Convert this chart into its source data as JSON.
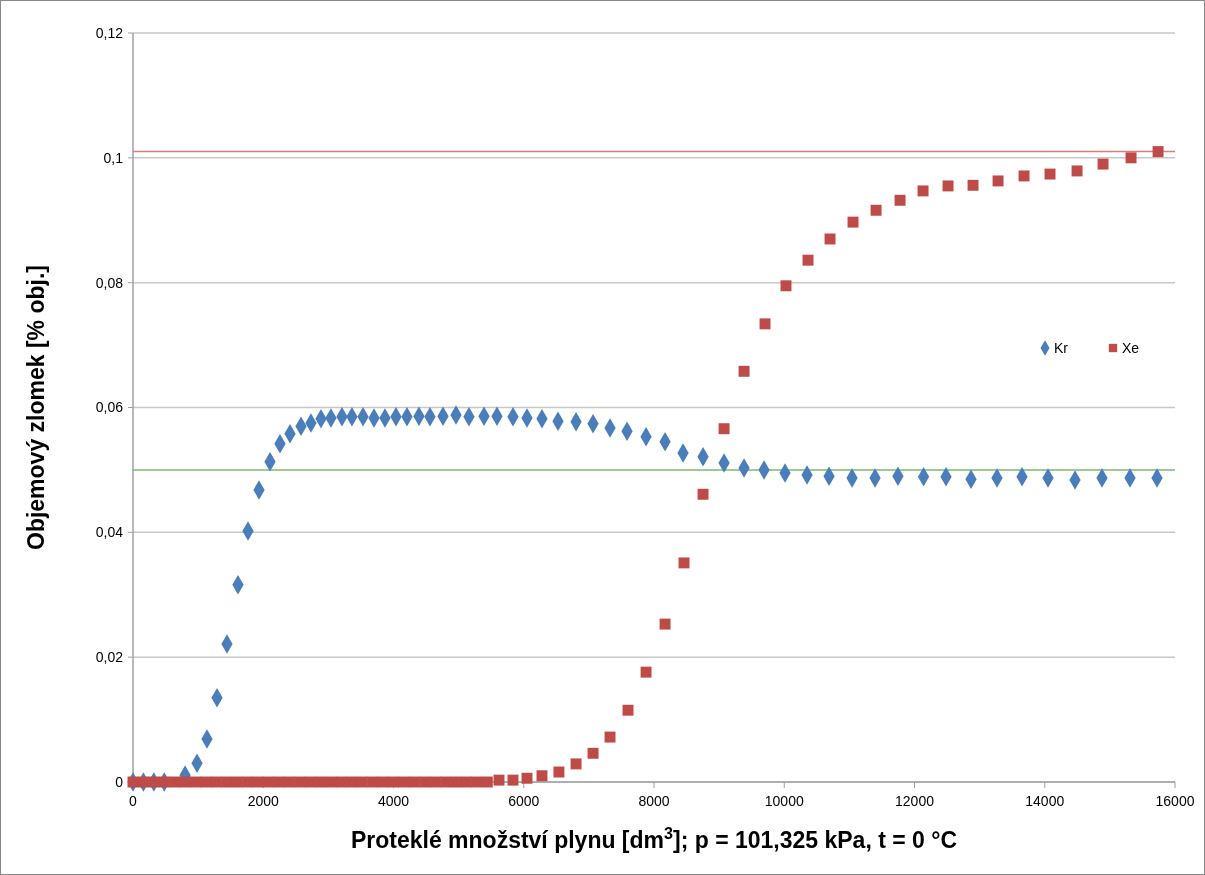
{
  "chart_data": {
    "type": "scatter",
    "xlabel": "Proteklé množství plynu [dm$^{3}$]; p = 101,325 kPa, t = 0 °C",
    "ylabel": "Objemový zlomek [% obj.]",
    "xlim": [
      0,
      16000
    ],
    "xticks": [
      0,
      2000,
      4000,
      6000,
      8000,
      10000,
      12000,
      14000,
      16000
    ],
    "ylim": [
      0,
      0.12
    ],
    "yticks": [
      0,
      {
        "value": 0.02,
        "label": "0,02"
      },
      {
        "value": 0.04,
        "label": "0,04"
      },
      {
        "value": 0.06,
        "label": "0,06"
      },
      {
        "value": 0.08,
        "label": "0,08"
      },
      {
        "value": 0.1,
        "label": "0,1"
      },
      {
        "value": 0.12,
        "label": "0,12"
      }
    ],
    "grid": "y",
    "legend": "right",
    "ref_lines": [
      {
        "axis": "y",
        "value": 0.101,
        "color": "#e07b79"
      },
      {
        "axis": "y",
        "value": 0.05,
        "color": "#7dbb6a"
      }
    ],
    "series": [
      {
        "name": "Kr",
        "color": "#4a7ebb",
        "marker": "diamond",
        "x": [
          0,
          160,
          320,
          480,
          800,
          983,
          1136,
          1290,
          1443,
          1612,
          1766,
          1935,
          2104,
          2257,
          2411,
          2580,
          2733,
          2887,
          3040,
          3209,
          3362,
          3532,
          3701,
          3869,
          4038,
          4207,
          4391,
          4560,
          4760,
          4960,
          5159,
          5390,
          5589,
          5835,
          6050,
          6280,
          6526,
          6803,
          7064,
          7325,
          7586,
          7878,
          8170,
          8446,
          8753,
          9076,
          9383,
          9690,
          10012,
          10350,
          10688,
          11041,
          11394,
          11746,
          12139,
          12484,
          12868,
          13267,
          13651,
          14050,
          14465,
          14879,
          15309,
          15724
        ],
        "values": [
          0,
          0,
          0,
          0,
          0.0011,
          0.003,
          0.0069,
          0.0135,
          0.0221,
          0.0316,
          0.0402,
          0.0468,
          0.0513,
          0.0542,
          0.0558,
          0.057,
          0.0575,
          0.0582,
          0.0583,
          0.0585,
          0.0585,
          0.0585,
          0.0583,
          0.0583,
          0.0585,
          0.0585,
          0.0586,
          0.0585,
          0.0586,
          0.0588,
          0.0585,
          0.0586,
          0.0586,
          0.0585,
          0.0583,
          0.0582,
          0.0578,
          0.0577,
          0.0574,
          0.0567,
          0.0562,
          0.0553,
          0.0545,
          0.0527,
          0.0521,
          0.0511,
          0.0503,
          0.05,
          0.0495,
          0.0492,
          0.049,
          0.0487,
          0.0487,
          0.049,
          0.0489,
          0.0489,
          0.0485,
          0.0487,
          0.0489,
          0.0487,
          0.0484,
          0.0487,
          0.0487,
          0.0487
        ]
      },
      {
        "name": "Xe",
        "color": "#be4b48",
        "marker": "square",
        "x": [
          0,
          160,
          320,
          480,
          640,
          800,
          960,
          1120,
          1280,
          1440,
          1600,
          1760,
          1920,
          2080,
          2240,
          2400,
          2560,
          2720,
          2880,
          3040,
          3200,
          3360,
          3520,
          3680,
          3840,
          4000,
          4160,
          4320,
          4480,
          4640,
          4800,
          4960,
          5120,
          5280,
          5440,
          5620,
          5835,
          6050,
          6280,
          6540,
          6803,
          7064,
          7325,
          7601,
          7878,
          8170,
          8461,
          8753,
          9076,
          9383,
          9705,
          10027,
          10365,
          10703,
          11056,
          11410,
          11778,
          12131,
          12515,
          12899,
          13283,
          13682,
          14081,
          14496,
          14895,
          15325,
          15740
        ],
        "values": [
          0,
          0,
          0,
          0,
          0,
          0,
          0,
          0,
          0,
          0,
          0,
          0,
          0,
          0,
          0,
          0,
          0,
          0,
          0,
          0,
          0,
          0,
          0,
          0,
          0,
          0,
          0,
          0,
          0,
          0,
          0,
          0,
          0,
          0,
          0,
          0.0003,
          0.0003,
          0.0006,
          0.001,
          0.0016,
          0.0029,
          0.0046,
          0.0072,
          0.0115,
          0.0176,
          0.0253,
          0.0351,
          0.0461,
          0.0566,
          0.0658,
          0.0734,
          0.0795,
          0.0836,
          0.087,
          0.0897,
          0.0916,
          0.0932,
          0.0947,
          0.0955,
          0.0956,
          0.0963,
          0.0971,
          0.0974,
          0.0979,
          0.099,
          0.1,
          0.101
        ]
      }
    ]
  }
}
